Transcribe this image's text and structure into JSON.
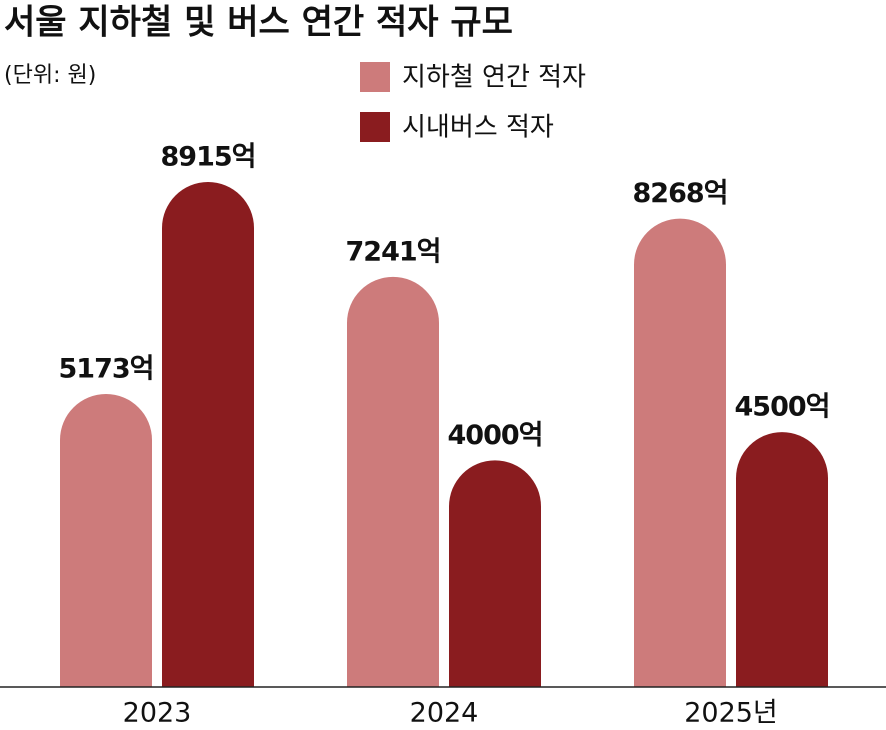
{
  "chart_data": {
    "type": "bar",
    "title": "서울 지하철 및 버스 연간 적자 규모",
    "subtitle": "(단위: 원)",
    "categories": [
      "2023",
      "2024",
      "2025년"
    ],
    "series": [
      {
        "name": "지하철 연간 적자",
        "color": "#cd7b7b",
        "values": [
          5173,
          7241,
          8268
        ],
        "value_labels": [
          "5173억",
          "7241억",
          "8268억"
        ]
      },
      {
        "name": "시내버스 적자",
        "color": "#8a1c1f",
        "values": [
          8915,
          4000,
          4500
        ],
        "value_labels": [
          "8915억",
          "4000억",
          "4500억"
        ]
      }
    ]
  }
}
